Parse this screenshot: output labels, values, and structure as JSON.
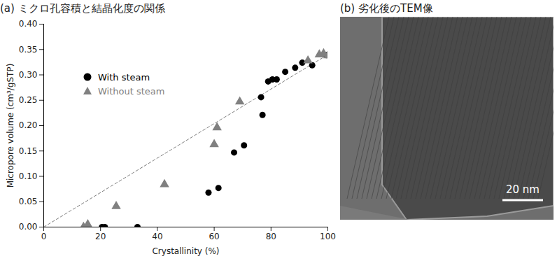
{
  "chart_data": {
    "type": "scatter",
    "title": "(a) ミクロ孔容積と結晶化度の関係",
    "x_label": "Crystallinity (%)",
    "y_label": "Micropore volume (cm³/gSTP)",
    "xlim": [
      0,
      100
    ],
    "ylim": [
      0,
      0.4
    ],
    "xticks": [
      0,
      20,
      40,
      60,
      80,
      100
    ],
    "yticks": [
      {
        "value": 0,
        "label": "0.00"
      },
      {
        "value": 0.05,
        "label": "0.05"
      },
      {
        "value": 0.1,
        "label": "0.10"
      },
      {
        "value": 0.15,
        "label": "0.15"
      },
      {
        "value": 0.2,
        "label": "0.20"
      },
      {
        "value": 0.25,
        "label": "0.25"
      },
      {
        "value": 0.3,
        "label": "0.30"
      },
      {
        "value": 0.35,
        "label": "0.35"
      },
      {
        "value": 0.4,
        "label": "0.40"
      }
    ],
    "grid": false,
    "legend": "upper left",
    "series": [
      {
        "name": "With steam",
        "color": "#000000",
        "marker": "circle",
        "x": [
          20.5,
          21.5,
          33,
          58,
          61.5,
          67,
          70.5,
          76.5,
          77,
          79,
          80.5,
          82,
          85,
          88.5,
          91,
          94.5,
          99.5
        ],
        "values": [
          0,
          0,
          0,
          0.068,
          0.077,
          0.147,
          0.161,
          0.256,
          0.221,
          0.287,
          0.291,
          0.291,
          0.306,
          0.314,
          0.324,
          0.319,
          0.339
        ]
      },
      {
        "name": "Without steam",
        "color": "#808080",
        "marker": "triangle",
        "x": [
          14,
          15.5,
          25.5,
          42.5,
          60,
          61,
          69,
          93,
          97,
          98.5,
          100
        ],
        "values": [
          0,
          0.005,
          0.041,
          0.084,
          0.163,
          0.196,
          0.247,
          0.328,
          0.34,
          0.342,
          0.338
        ]
      }
    ],
    "reference_line": {
      "x": [
        0,
        100
      ],
      "values": [
        0,
        0.34
      ],
      "color": "#808080",
      "line_style": "dashed"
    }
  },
  "image_panel": {
    "title": "(b) 劣化後のTEM像",
    "scale_bar_label": "20 nm"
  }
}
